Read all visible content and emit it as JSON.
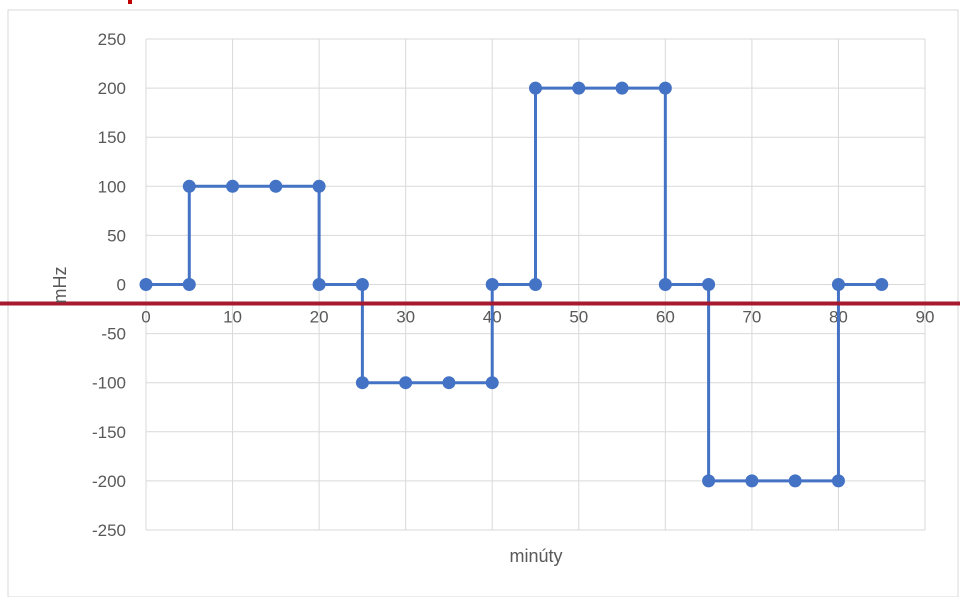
{
  "chart_data": {
    "type": "line",
    "xlabel": "minúty",
    "ylabel": "mHz",
    "xlim": [
      0,
      90
    ],
    "ylim": [
      -250,
      250
    ],
    "x_ticks": [
      0,
      10,
      20,
      30,
      40,
      50,
      60,
      70,
      80,
      90
    ],
    "y_ticks": [
      250,
      200,
      150,
      100,
      50,
      0,
      -50,
      -100,
      -150,
      -200,
      -250
    ],
    "grid": true,
    "legend": "none",
    "series": [
      {
        "color": "#4472C4",
        "points": [
          [
            0,
            0
          ],
          [
            5,
            0
          ],
          [
            5,
            100
          ],
          [
            10,
            100
          ],
          [
            15,
            100
          ],
          [
            20,
            100
          ],
          [
            20,
            0
          ],
          [
            25,
            0
          ],
          [
            25,
            -100
          ],
          [
            30,
            -100
          ],
          [
            35,
            -100
          ],
          [
            40,
            -100
          ],
          [
            40,
            0
          ],
          [
            45,
            0
          ],
          [
            45,
            200
          ],
          [
            50,
            200
          ],
          [
            55,
            200
          ],
          [
            60,
            200
          ],
          [
            60,
            0
          ],
          [
            65,
            0
          ],
          [
            65,
            -200
          ],
          [
            70,
            -200
          ],
          [
            75,
            -200
          ],
          [
            80,
            -200
          ],
          [
            80,
            0
          ],
          [
            85,
            0
          ]
        ]
      }
    ],
    "reference_line": {
      "y": 0,
      "color": "#A6192E"
    }
  }
}
